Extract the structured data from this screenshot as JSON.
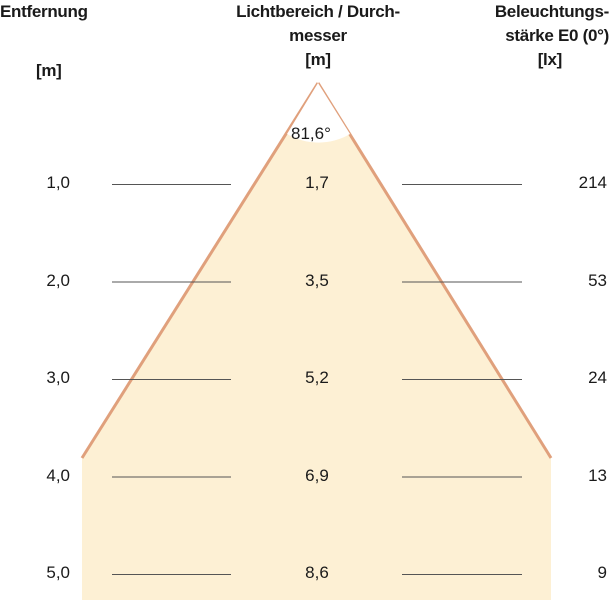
{
  "headers": {
    "distance": {
      "title": "Entfernung",
      "unit": "[m]"
    },
    "diameter": {
      "line1": "Lichtbereich / Durch-",
      "line2": "messer",
      "unit": "[m]"
    },
    "illuminance": {
      "line1": "Beleuchtungs-",
      "line2": "stärke E0 (0°)",
      "unit": "[lx]"
    }
  },
  "beam_angle": "81,6°",
  "rows": [
    {
      "distance": "1,0",
      "diameter": "1,7",
      "illuminance": "214"
    },
    {
      "distance": "2,0",
      "diameter": "3,5",
      "illuminance": "53"
    },
    {
      "distance": "3,0",
      "diameter": "5,2",
      "illuminance": "24"
    },
    {
      "distance": "4,0",
      "diameter": "6,9",
      "illuminance": "13"
    },
    {
      "distance": "5,0",
      "diameter": "8,6",
      "illuminance": "9"
    }
  ],
  "colors": {
    "cone_fill": "#fdf0d4",
    "cone_edge": "#e0a07c",
    "rule": "#555555"
  }
}
